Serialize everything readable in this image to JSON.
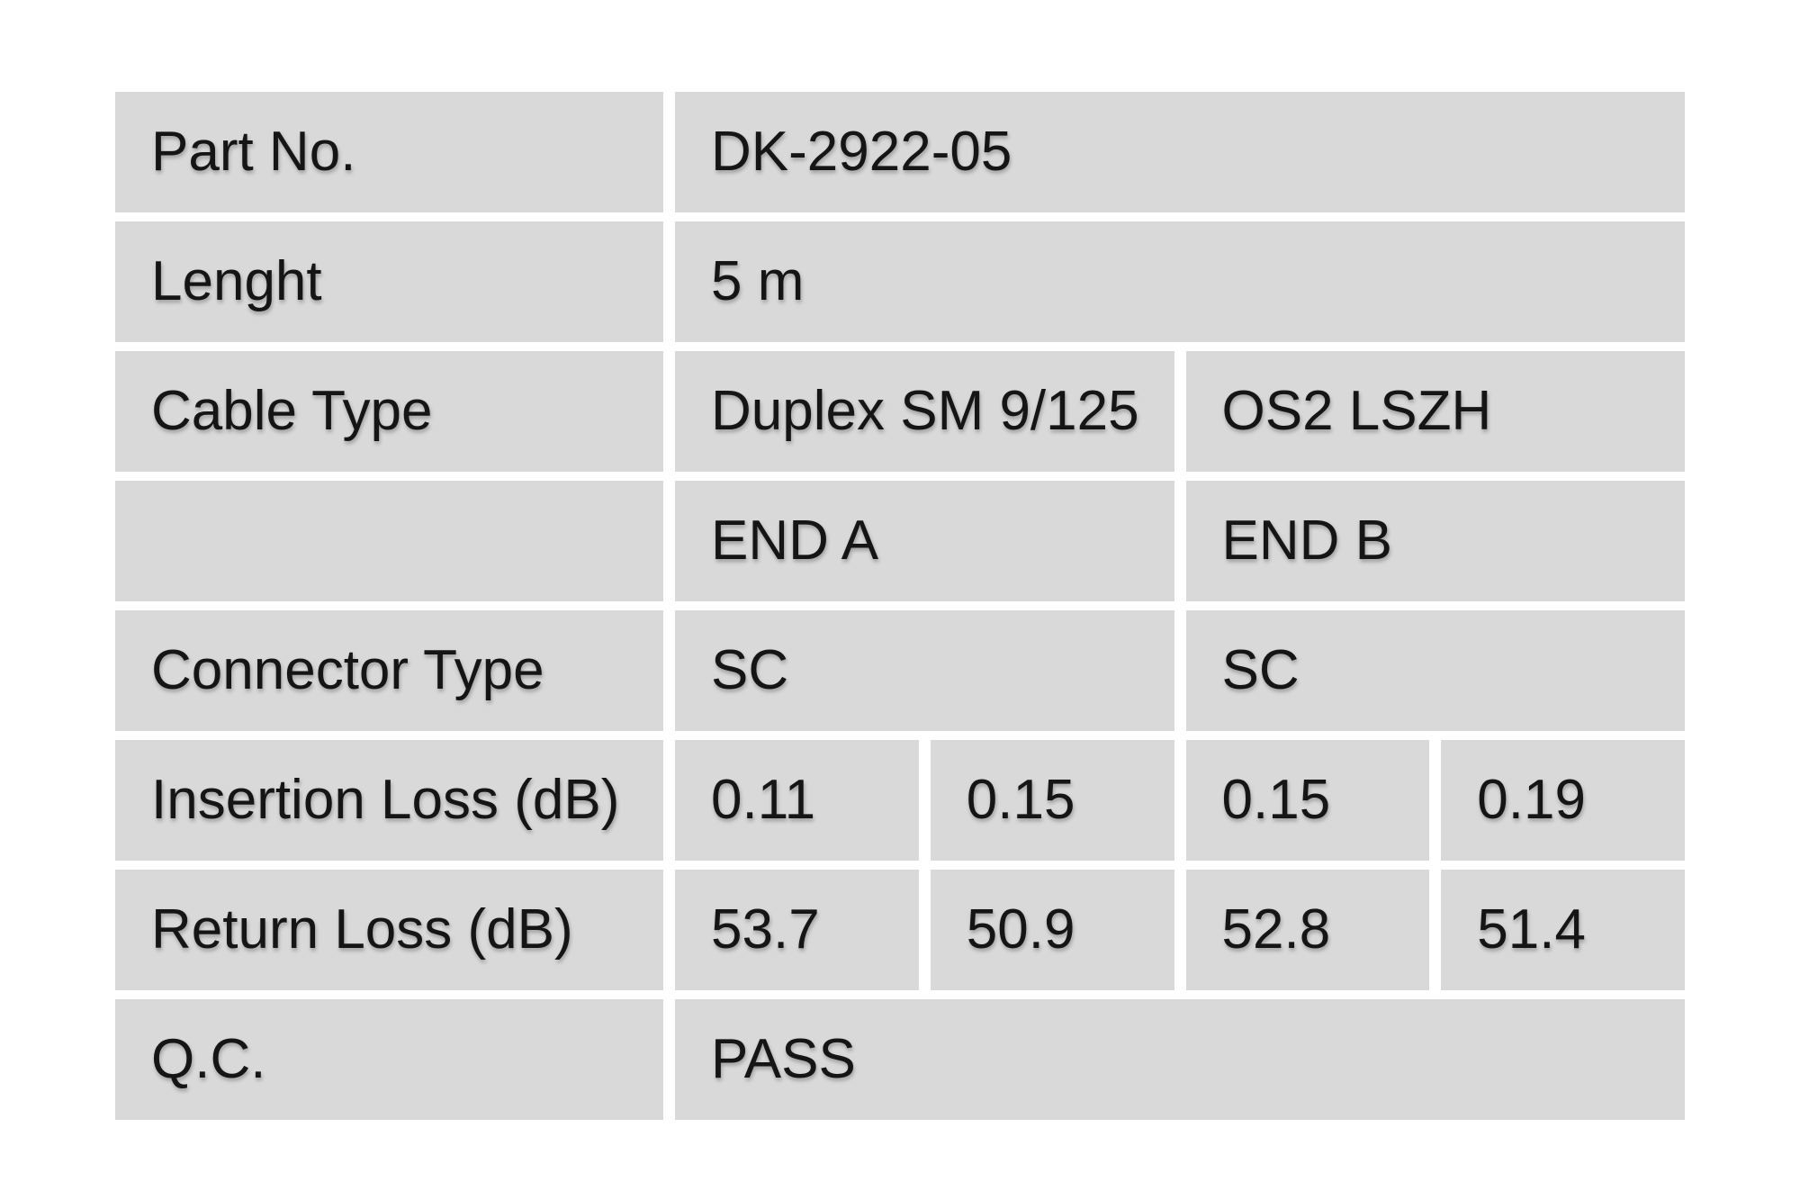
{
  "page": {
    "background_color": "#ffffff"
  },
  "table": {
    "cell_background_color": "#d9d9d9",
    "text_color": "#151515",
    "rows": [
      {
        "type": "label-value",
        "label": "Part No.",
        "value": "DK-2922-05"
      },
      {
        "type": "label-value",
        "label": "Lenght",
        "value": "5 m"
      },
      {
        "type": "label-pair",
        "label": "Cable Type",
        "value_a": "Duplex SM 9/125",
        "value_b": "OS2 LSZH"
      },
      {
        "type": "label-pair",
        "label": "",
        "value_a": "END A",
        "value_b": "END B"
      },
      {
        "type": "label-pair",
        "label": "Connector Type",
        "value_a": "SC",
        "value_b": "SC"
      },
      {
        "type": "label-quad",
        "label": "Insertion Loss (dB)",
        "values": [
          "0.11",
          "0.15",
          "0.15",
          "0.19"
        ]
      },
      {
        "type": "label-quad",
        "label": "Return Loss (dB)",
        "values": [
          "53.7",
          "50.9",
          "52.8",
          "51.4"
        ]
      },
      {
        "type": "label-value",
        "label": "Q.C.",
        "value": "PASS"
      }
    ]
  }
}
